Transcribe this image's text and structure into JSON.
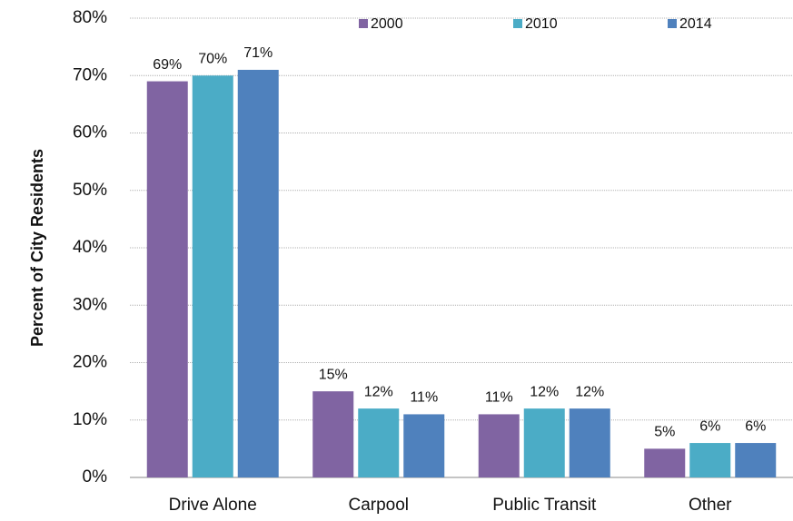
{
  "chart_data": {
    "type": "bar",
    "y_label": "Percent of City Residents",
    "categories": [
      "Drive Alone",
      "Carpool",
      "Public Transit",
      "Other"
    ],
    "series": [
      {
        "name": "2000",
        "color": "#8064a2",
        "values": [
          69,
          15,
          11,
          5
        ],
        "value_labels": [
          "69%",
          "15%",
          "11%",
          "5%"
        ]
      },
      {
        "name": "2010",
        "color": "#4bacc6",
        "values": [
          70,
          12,
          12,
          6
        ],
        "value_labels": [
          "70%",
          "12%",
          "12%",
          "6%"
        ]
      },
      {
        "name": "2014",
        "color": "#4f81bd",
        "values": [
          71,
          11,
          12,
          6
        ],
        "value_labels": [
          "71%",
          "11%",
          "12%",
          "6%"
        ]
      }
    ],
    "ylim": [
      0,
      80
    ],
    "yticks": [
      {
        "value": 0,
        "label": "0%"
      },
      {
        "value": 10,
        "label": "10%"
      },
      {
        "value": 20,
        "label": "20%"
      },
      {
        "value": 30,
        "label": "30%"
      },
      {
        "value": 40,
        "label": "40%"
      },
      {
        "value": 50,
        "label": "50%"
      },
      {
        "value": 60,
        "label": "60%"
      },
      {
        "value": 70,
        "label": "70%"
      },
      {
        "value": 80,
        "label": "80%"
      }
    ],
    "grid": true,
    "legend": "top"
  }
}
